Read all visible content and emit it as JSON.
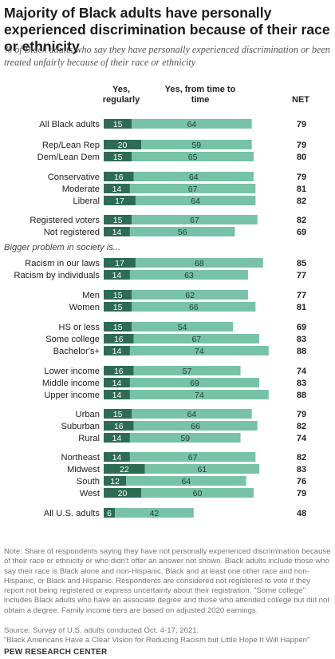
{
  "title": "Majority of Black adults have personally experienced discrimination because of their race or ethnicity",
  "subtitle": "% of Black adults who say they have personally experienced discrimination or been treated unfairly because of their race or ethnicity",
  "columns": {
    "regularly": "Yes, regularly",
    "time_to_time": "Yes, from time to time",
    "net": "NET"
  },
  "colors": {
    "regularly": "#2e6b55",
    "time_to_time": "#78c2a8",
    "label_text": "#ffffff"
  },
  "chart_data": {
    "type": "bar",
    "stacked": true,
    "orientation": "horizontal",
    "series": [
      {
        "name": "Yes, regularly",
        "values": [
          15,
          20,
          15,
          16,
          14,
          17,
          15,
          14,
          17,
          14,
          15,
          15,
          15,
          16,
          14,
          16,
          14,
          14,
          15,
          16,
          14,
          14,
          22,
          12,
          20,
          6
        ]
      },
      {
        "name": "Yes, from time to time",
        "values": [
          64,
          59,
          65,
          64,
          67,
          64,
          67,
          56,
          68,
          63,
          62,
          66,
          54,
          67,
          74,
          57,
          69,
          74,
          64,
          66,
          59,
          67,
          61,
          64,
          60,
          42
        ]
      }
    ],
    "net": [
      79,
      79,
      80,
      79,
      81,
      82,
      82,
      69,
      85,
      77,
      77,
      81,
      69,
      83,
      88,
      74,
      83,
      88,
      79,
      82,
      74,
      82,
      83,
      76,
      79,
      48
    ],
    "categories": [
      "All Black adults",
      "Rep/Lean Rep",
      "Dem/Lean Dem",
      "Conservative",
      "Moderate",
      "Liberal",
      "Registered voters",
      "Not registered",
      "Racism in our laws",
      "Racism by individuals",
      "Men",
      "Women",
      "HS or less",
      "Some college",
      "Bachelor's+",
      "Lower income",
      "Middle income",
      "Upper income",
      "Urban",
      "Suburban",
      "Rural",
      "Northeast",
      "Midwest",
      "South",
      "West",
      "All U.S. adults"
    ],
    "section_label": "Bigger problem in society is..."
  },
  "note": "Note: Share of respondents saying they have not personally experienced discrimination because of their race or ethnicity or who didn't offer an answer not shown. Black adults include those who say their race is Black alone and non-Hispanic, Black and at least one other race and non-Hispanic, or Black and Hispanic. Respondents are considered not registered to vote if they report not being registered or express uncertainty about their registration. \"Some college\" includes Black adults who have an associate degree and those who attended college but did not obtain a degree. Family income tiers are based on adjusted 2020 earnings.",
  "source": "Source: Survey of U.S. adults conducted Oct. 4-17, 2021.",
  "report": "“Black Americans Have a Clear Vision for Reducing Racism but Little Hope It Will Happen”",
  "brand": "PEW RESEARCH CENTER"
}
